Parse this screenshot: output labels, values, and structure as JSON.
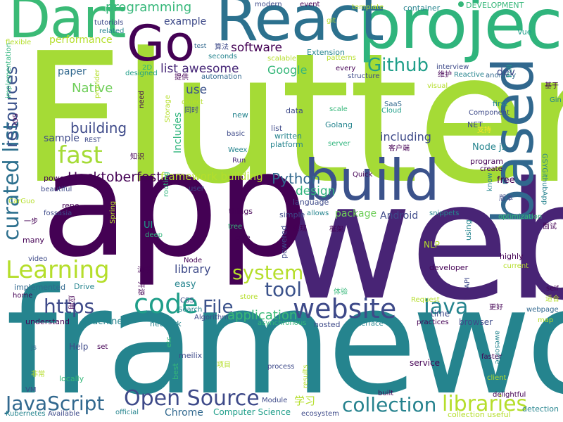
{
  "palette": {
    "dark_purple": "#440154",
    "purple": "#472878",
    "indigo": "#3e4a89",
    "blue": "#31688e",
    "teal": "#26828e",
    "sea": "#1f9e89",
    "green": "#35b779",
    "lime": "#6ece58",
    "yellow_green": "#b5de2b",
    "yellow": "#fde725"
  },
  "words": [
    {
      "text": "Flutter",
      "color": "#a5db36"
    },
    {
      "text": "web",
      "color": "#482475"
    },
    {
      "text": "app",
      "color": "#440154"
    },
    {
      "text": "framework",
      "color": "#25848e"
    },
    {
      "text": "project",
      "color": "#2fb47c"
    },
    {
      "text": "React",
      "color": "#2c718e"
    },
    {
      "text": "build",
      "color": "#3b528b"
    },
    {
      "text": "based",
      "color": "#31688e"
    },
    {
      "text": "Dart",
      "color": "#3aba76"
    },
    {
      "text": "Go",
      "color": "#440154"
    },
    {
      "text": "website",
      "color": "#3e4a89"
    },
    {
      "text": "code",
      "color": "#1f9e89"
    },
    {
      "text": "fast",
      "color": "#a5db36"
    },
    {
      "text": "Learning",
      "color": "#b5de2b"
    },
    {
      "text": "curated list",
      "color": "#2d708e"
    },
    {
      "text": "resources",
      "color": "#3b528b"
    },
    {
      "text": "Java",
      "color": "#25848e"
    },
    {
      "text": "Open Source",
      "color": "#3e4a89"
    },
    {
      "text": "collection",
      "color": "#26828e"
    },
    {
      "text": "JavaScript",
      "color": "#31688e"
    },
    {
      "text": "libraries",
      "color": "#b5de2b"
    },
    {
      "text": "system",
      "color": "#b5de2b"
    },
    {
      "text": "tool",
      "color": "#3b528b"
    },
    {
      "text": "https",
      "color": "#3e4a89"
    },
    {
      "text": "File",
      "color": "#3b528b"
    },
    {
      "text": "Github",
      "color": "#1f9e89"
    },
    {
      "text": "Native",
      "color": "#6ece58"
    },
    {
      "text": "building",
      "color": "#3e4a89"
    },
    {
      "text": "Hacktoberfest",
      "color": "#440154"
    },
    {
      "text": "Python",
      "color": "#31688e"
    },
    {
      "text": "application",
      "color": "#3aba76"
    },
    {
      "text": "programming",
      "color": "#35b779"
    },
    {
      "text": "software",
      "color": "#440154"
    },
    {
      "text": "list awesome",
      "color": "#472878"
    },
    {
      "text": "use",
      "color": "#3b528b"
    },
    {
      "text": "Google",
      "color": "#35b779"
    },
    {
      "text": "framework building",
      "color": "#b5de2b"
    },
    {
      "text": "design",
      "color": "#2fb47c"
    },
    {
      "text": "including",
      "color": "#3e4a89"
    },
    {
      "text": "library",
      "color": "#3e4a89"
    },
    {
      "text": "example",
      "color": "#3e4a89"
    },
    {
      "text": "performance",
      "color": "#b5de2b"
    },
    {
      "text": "paper",
      "color": "#31688e"
    },
    {
      "text": "sample",
      "color": "#3e4a89"
    },
    {
      "text": "Includes",
      "color": "#2fb47c"
    },
    {
      "text": "package",
      "color": "#6ece58"
    },
    {
      "text": "Android",
      "color": "#3e4a89"
    },
    {
      "text": "Machine",
      "color": "#25848e"
    },
    {
      "text": "application",
      "color": "#3aba76"
    },
    {
      "text": "学习",
      "color": "#b5de2b"
    },
    {
      "text": "Chrome",
      "color": "#31688e"
    },
    {
      "text": "Computer Science",
      "color": "#1f9e89"
    },
    {
      "text": "modern",
      "color": "#3e4a89"
    },
    {
      "text": "event",
      "color": "#440154"
    },
    {
      "text": "template",
      "color": "#b5de2b"
    },
    {
      "text": "container",
      "color": "#25848e"
    },
    {
      "text": "DEVELOPMENT",
      "color": "#35b779"
    },
    {
      "text": "tutorials",
      "color": "#3e4a89"
    },
    {
      "text": "related",
      "color": "#25848e"
    },
    {
      "text": "git",
      "color": "#b5de2b"
    },
    {
      "text": "Vue",
      "color": "#1f9e89"
    },
    {
      "text": "flexible",
      "color": "#b5de2b"
    },
    {
      "text": "test",
      "color": "#31688e"
    },
    {
      "text": "算法",
      "color": "#3e4a89"
    },
    {
      "text": "Extension",
      "color": "#25848e"
    },
    {
      "text": "patterns",
      "color": "#b5de2b"
    },
    {
      "text": "scalable",
      "color": "#b5de2b"
    },
    {
      "text": "interview",
      "color": "#3e4a89"
    },
    {
      "text": "anomaly",
      "color": "#31688e"
    },
    {
      "text": "implementation",
      "color": "#2fb47c"
    },
    {
      "text": "designed",
      "color": "#1f9e89"
    },
    {
      "text": "提供",
      "color": "#440154"
    },
    {
      "text": "automation",
      "color": "#31688e"
    },
    {
      "text": "every",
      "color": "#440154"
    },
    {
      "text": "structure",
      "color": "#3e4a89"
    },
    {
      "text": "维护",
      "color": "#440154"
    },
    {
      "text": "Reactive",
      "color": "#25848e"
    },
    {
      "text": "Pull",
      "color": "#1f9e89"
    },
    {
      "text": "基于",
      "color": "#440154"
    },
    {
      "text": "seconds",
      "color": "#25848e"
    },
    {
      "text": "iOS",
      "color": "#440154"
    },
    {
      "text": "2D",
      "color": "#2fb47c"
    },
    {
      "text": "provider",
      "color": "#b5de2b"
    },
    {
      "text": "Storage",
      "color": "#b5de2b"
    },
    {
      "text": "object",
      "color": "#b5de2b"
    },
    {
      "text": "同时",
      "color": "#3e4a89"
    },
    {
      "text": "SaaS",
      "color": "#31688e"
    },
    {
      "text": "Cloud",
      "color": "#1f9e89"
    },
    {
      "text": "visual",
      "color": "#b5de2b"
    },
    {
      "text": "first",
      "color": "#25848e"
    },
    {
      "text": "Component",
      "color": "#3e4a89"
    },
    {
      "text": "Gin",
      "color": "#25848e"
    },
    {
      "text": "new",
      "color": "#25848e"
    },
    {
      "text": "data",
      "color": "#3e4a89"
    },
    {
      "text": "scale",
      "color": "#35b779"
    },
    {
      "text": "need",
      "color": "#440154"
    },
    {
      "text": "REST",
      "color": "#3e4a89"
    },
    {
      "text": "basic",
      "color": "#3e4a89"
    },
    {
      "text": "list",
      "color": "#3e4a89"
    },
    {
      "text": "written",
      "color": "#25848e"
    },
    {
      "text": "Golang",
      "color": "#25848e"
    },
    {
      "text": "NET",
      "color": "#3e4a89"
    },
    {
      "text": "支持",
      "color": "#fde725"
    },
    {
      "text": "dev",
      "color": "#3e4a89"
    },
    {
      "text": "Weex",
      "color": "#25848e"
    },
    {
      "text": "platform",
      "color": "#25848e"
    },
    {
      "text": "server",
      "color": "#2fb47c"
    },
    {
      "text": "客户端",
      "color": "#440154"
    },
    {
      "text": "Node js",
      "color": "#25848e"
    },
    {
      "text": "知识",
      "color": "#440154"
    },
    {
      "text": "Run",
      "color": "#472878"
    },
    {
      "text": "program",
      "color": "#440154"
    },
    {
      "text": "create",
      "color": "#440154"
    },
    {
      "text": "GSYGithubApp",
      "color": "#26828e"
    },
    {
      "text": "powerful",
      "color": "#440154"
    },
    {
      "text": "beautiful",
      "color": "#3e4a89"
    },
    {
      "text": "routing",
      "color": "#2fb47c"
    },
    {
      "text": "user",
      "color": "#3e4a89"
    },
    {
      "text": "language",
      "color": "#3e4a89"
    },
    {
      "text": "Quick",
      "color": "#440154"
    },
    {
      "text": "know",
      "color": "#25848e"
    },
    {
      "text": "free",
      "color": "#440154"
    },
    {
      "text": "版本",
      "color": "#3e4a89"
    },
    {
      "text": "CarGuo",
      "color": "#b5de2b"
    },
    {
      "text": "repo",
      "color": "#440154"
    },
    {
      "text": "Spring",
      "color": "#b5de2b"
    },
    {
      "text": "things",
      "color": "#440154"
    },
    {
      "text": "snippets",
      "color": "#25848e"
    },
    {
      "text": "fossasia",
      "color": "#3e4a89"
    },
    {
      "text": "UI",
      "color": "#1f9e89"
    },
    {
      "text": "simple",
      "color": "#3e4a89"
    },
    {
      "text": "allows",
      "color": "#25848e"
    },
    {
      "text": "一步",
      "color": "#440154"
    },
    {
      "text": "deep",
      "color": "#2fb47c"
    },
    {
      "text": "tree",
      "color": "#35b779"
    },
    {
      "text": "实现",
      "color": "#440154"
    },
    {
      "text": "框架",
      "color": "#440154"
    },
    {
      "text": "using",
      "color": "#25848e"
    },
    {
      "text": "optimization",
      "color": "#35b779"
    },
    {
      "text": "面试",
      "color": "#440154"
    },
    {
      "text": "many",
      "color": "#440154"
    },
    {
      "text": "core",
      "color": "#440154"
    },
    {
      "text": "powered",
      "color": "#3e4a89"
    },
    {
      "text": "NLP",
      "color": "#b5de2b"
    },
    {
      "text": "highly",
      "color": "#440154"
    },
    {
      "text": "current",
      "color": "#b5de2b"
    },
    {
      "text": "video",
      "color": "#3e4a89"
    },
    {
      "text": "Node",
      "color": "#440154"
    },
    {
      "text": "流畅",
      "color": "#440154"
    },
    {
      "text": "developer",
      "color": "#440154"
    },
    {
      "text": "implemented",
      "color": "#31688e"
    },
    {
      "text": "开源",
      "color": "#440154"
    },
    {
      "text": "Drive",
      "color": "#25848e"
    },
    {
      "text": "easy",
      "color": "#25848e"
    },
    {
      "text": "API",
      "color": "#3e4a89"
    },
    {
      "text": "self",
      "color": "#440154"
    },
    {
      "text": "home",
      "color": "#440154"
    },
    {
      "text": "store",
      "color": "#b5de2b"
    },
    {
      "text": "体验",
      "color": "#35b779"
    },
    {
      "text": "Request",
      "color": "#b5de2b"
    },
    {
      "text": "更好",
      "color": "#440154"
    },
    {
      "text": "webpage",
      "color": "#31688e"
    },
    {
      "text": "understand",
      "color": "#440154"
    },
    {
      "text": "CSS",
      "color": "#3e4a89"
    },
    {
      "text": "Search",
      "color": "#25848e"
    },
    {
      "text": "time",
      "color": "#3e4a89"
    },
    {
      "text": "适合",
      "color": "#b5de2b"
    },
    {
      "text": "应用",
      "color": "#440154"
    },
    {
      "text": "network",
      "color": "#25848e"
    },
    {
      "text": "Algorithm",
      "color": "#3e4a89"
    },
    {
      "text": "hosted",
      "color": "#3e4a89"
    },
    {
      "text": "interface",
      "color": "#25848e"
    },
    {
      "text": "practices",
      "color": "#440154"
    },
    {
      "text": "browser",
      "color": "#3e4a89"
    },
    {
      "text": "awesome",
      "color": "#25848e"
    },
    {
      "text": "map",
      "color": "#b5de2b"
    },
    {
      "text": "asynchronous",
      "color": "#35b779"
    },
    {
      "text": "js",
      "color": "#31688e"
    },
    {
      "text": "Help",
      "color": "#3e4a89"
    },
    {
      "text": "set",
      "color": "#440154"
    },
    {
      "text": "etc",
      "color": "#35b779"
    },
    {
      "text": "meilix",
      "color": "#3e4a89"
    },
    {
      "text": "项目",
      "color": "#b5de2b"
    },
    {
      "text": "process",
      "color": "#3e4a89"
    },
    {
      "text": "service",
      "color": "#440154"
    },
    {
      "text": "faster",
      "color": "#440154"
    },
    {
      "text": "非常",
      "color": "#b5de2b"
    },
    {
      "text": "best",
      "color": "#35b779"
    },
    {
      "text": "results",
      "color": "#b5de2b"
    },
    {
      "text": "client",
      "color": "#b5de2b"
    },
    {
      "text": "locally",
      "color": "#35b779"
    },
    {
      "text": "built",
      "color": "#440154"
    },
    {
      "text": "delightful",
      "color": "#440154"
    },
    {
      "text": "VM",
      "color": "#3e4a89"
    },
    {
      "text": "official",
      "color": "#25848e"
    },
    {
      "text": "Module",
      "color": "#3e4a89"
    },
    {
      "text": "detection",
      "color": "#25848e"
    },
    {
      "text": "Kubernetes",
      "color": "#25848e"
    },
    {
      "text": "Available",
      "color": "#3e4a89"
    },
    {
      "text": "ecosystem",
      "color": "#3e4a89"
    },
    {
      "text": "collection useful",
      "color": "#b5de2b"
    }
  ]
}
